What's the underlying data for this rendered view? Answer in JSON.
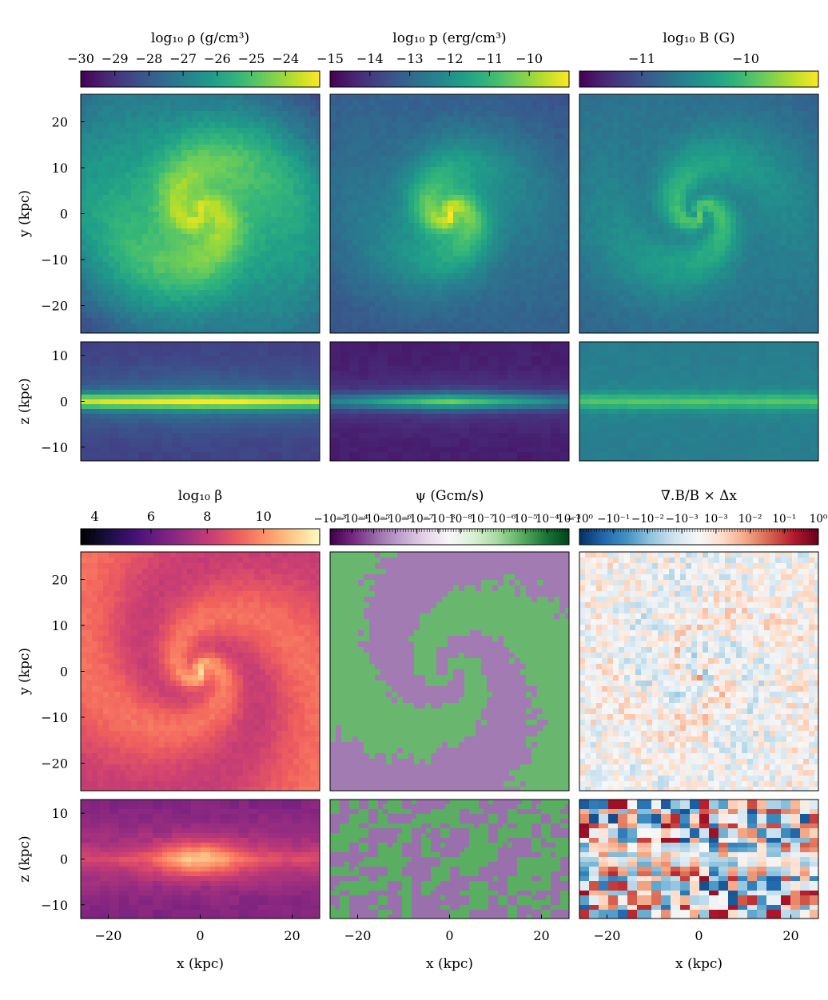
{
  "chart_data": [
    {
      "type": "heatmap",
      "colorbar": {
        "label": "log₁₀ ρ (g/cm³)",
        "ticks": [
          "−30",
          "−29",
          "−28",
          "−27",
          "−26",
          "−25",
          "−24"
        ],
        "range": [
          -30,
          -23
        ],
        "colormap": "viridis"
      },
      "pattern": "spiral",
      "face_on": {
        "xlim": [
          -26,
          26
        ],
        "ylim": [
          -26,
          26
        ],
        "ylabel": "y (kpc)",
        "yticks": [
          "20",
          "10",
          "0",
          "−10",
          "−20"
        ]
      },
      "edge_on": {
        "xlim": [
          -26,
          26
        ],
        "zlim": [
          -13,
          13
        ],
        "ylabel": "z (kpc)",
        "zticks": [
          "10",
          "0",
          "−10"
        ]
      }
    },
    {
      "type": "heatmap",
      "colorbar": {
        "label": "log₁₀ p (erg/cm³)",
        "ticks": [
          "−15",
          "−14",
          "−13",
          "−12",
          "−11",
          "−10"
        ],
        "range": [
          -15,
          -9
        ],
        "colormap": "viridis"
      },
      "pattern": "spiral",
      "face_on": {
        "xlim": [
          -26,
          26
        ],
        "ylim": [
          -26,
          26
        ]
      },
      "edge_on": {
        "xlim": [
          -26,
          26
        ],
        "zlim": [
          -13,
          13
        ]
      }
    },
    {
      "type": "heatmap",
      "colorbar": {
        "label": "log₁₀ B (G)",
        "ticks": [
          "−11",
          "−10"
        ],
        "range": [
          -11.6,
          -9.3
        ],
        "colormap": "viridis"
      },
      "pattern": "spiral",
      "face_on": {
        "xlim": [
          -26,
          26
        ],
        "ylim": [
          -26,
          26
        ]
      },
      "edge_on": {
        "xlim": [
          -26,
          26
        ],
        "zlim": [
          -13,
          13
        ]
      }
    },
    {
      "type": "heatmap",
      "colorbar": {
        "label": "log₁₀ β",
        "ticks": [
          "4",
          "6",
          "8",
          "10"
        ],
        "range": [
          3.5,
          12
        ],
        "colormap": "magma"
      },
      "pattern": "spiral",
      "face_on": {
        "xlim": [
          -26,
          26
        ],
        "ylim": [
          -26,
          26
        ],
        "ylabel": "y (kpc)",
        "yticks": [
          "20",
          "10",
          "0",
          "−10",
          "−20"
        ]
      },
      "edge_on": {
        "xlim": [
          -26,
          26
        ],
        "zlim": [
          -13,
          13
        ],
        "ylabel": "z (kpc)",
        "zticks": [
          "10",
          "0",
          "−10"
        ],
        "xlabel": "x (kpc)",
        "xticks": [
          "−20",
          "0",
          "20"
        ]
      }
    },
    {
      "type": "heatmap",
      "colorbar": {
        "label": "ψ (Gcm/s)",
        "ticks": [
          "−10⁻³",
          "−10⁻⁴",
          "−10⁻⁵",
          "−10⁻⁶",
          "−10⁻⁷",
          "−10⁻⁸",
          "10⁻⁸",
          "10⁻⁷",
          "10⁻⁶",
          "10⁻⁵",
          "10⁻⁴",
          "10⁻³"
        ],
        "scale": "symlog",
        "colormap": "PRGn"
      },
      "pattern": "diverging",
      "face_on": {
        "xlim": [
          -26,
          26
        ],
        "ylim": [
          -26,
          26
        ]
      },
      "edge_on": {
        "xlim": [
          -26,
          26
        ],
        "zlim": [
          -13,
          13
        ],
        "xlabel": "x (kpc)",
        "xticks": [
          "−20",
          "0",
          "20"
        ]
      }
    },
    {
      "type": "heatmap",
      "colorbar": {
        "label": "∇.B/B × Δx",
        "ticks": [
          "−10⁰",
          "−10⁻¹",
          "−10⁻²",
          "−10⁻³",
          "10⁻³",
          "10⁻²",
          "10⁻¹",
          "10⁰"
        ],
        "scale": "symlog",
        "colormap": "RdBu_r"
      },
      "pattern": "diverging",
      "face_on": {
        "xlim": [
          -26,
          26
        ],
        "ylim": [
          -26,
          26
        ]
      },
      "edge_on": {
        "xlim": [
          -26,
          26
        ],
        "zlim": [
          -13,
          13
        ],
        "xlabel": "x (kpc)",
        "xticks": [
          "−20",
          "0",
          "20"
        ]
      }
    }
  ]
}
